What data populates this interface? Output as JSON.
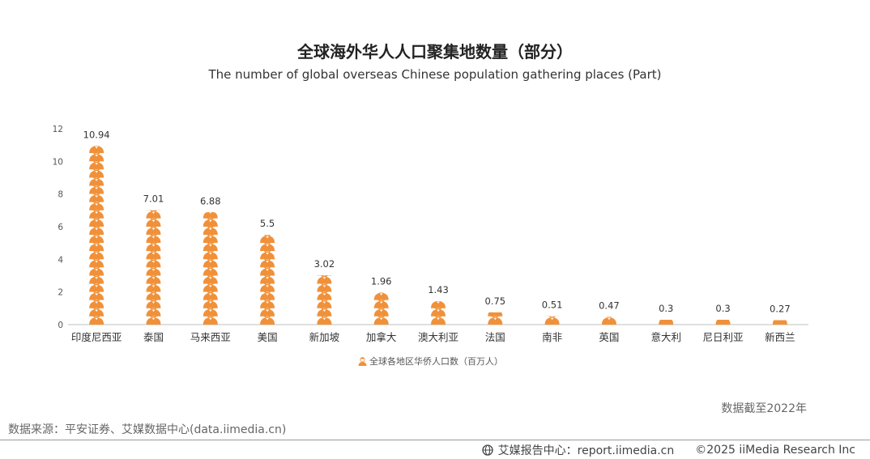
{
  "chart_data": {
    "type": "bar",
    "title": "全球海外华人人口聚集地数量（部分）",
    "subtitle": "The number of global overseas Chinese population gathering places (Part)",
    "categories": [
      "印度尼西亚",
      "泰国",
      "马来西亚",
      "美国",
      "新加坡",
      "加拿大",
      "澳大利亚",
      "法国",
      "南非",
      "英国",
      "意大利",
      "尼日利亚",
      "新西兰"
    ],
    "series": [
      {
        "name": "全球各地区华侨人口数（百万人）",
        "values": [
          10.94,
          7.01,
          6.88,
          5.5,
          3.02,
          1.96,
          1.43,
          0.75,
          0.51,
          0.47,
          0.3,
          0.3,
          0.27
        ],
        "data_labels": [
          "10.94",
          "7.01",
          "6.88",
          "5.5",
          "3.02",
          "1.96",
          "1.43",
          "0.75",
          "0.51",
          "0.47",
          "0.3",
          "0.3",
          "0.27"
        ]
      }
    ],
    "yticks": [
      "0",
      "2",
      "4",
      "6",
      "8",
      "10",
      "12"
    ],
    "ylim": [
      0,
      12
    ],
    "grid": false,
    "legend_position": "bottom",
    "marker_icon": "person-icon",
    "color": "#F0913A"
  },
  "note": "数据截至2022年",
  "source": "数据来源：平安证券、艾媒数据中心(data.iimedia.cn)",
  "footer": {
    "icon": "globe-icon",
    "site": "艾媒报告中心：report.iimedia.cn",
    "copyright": "©2025  iiMedia Research  Inc"
  }
}
